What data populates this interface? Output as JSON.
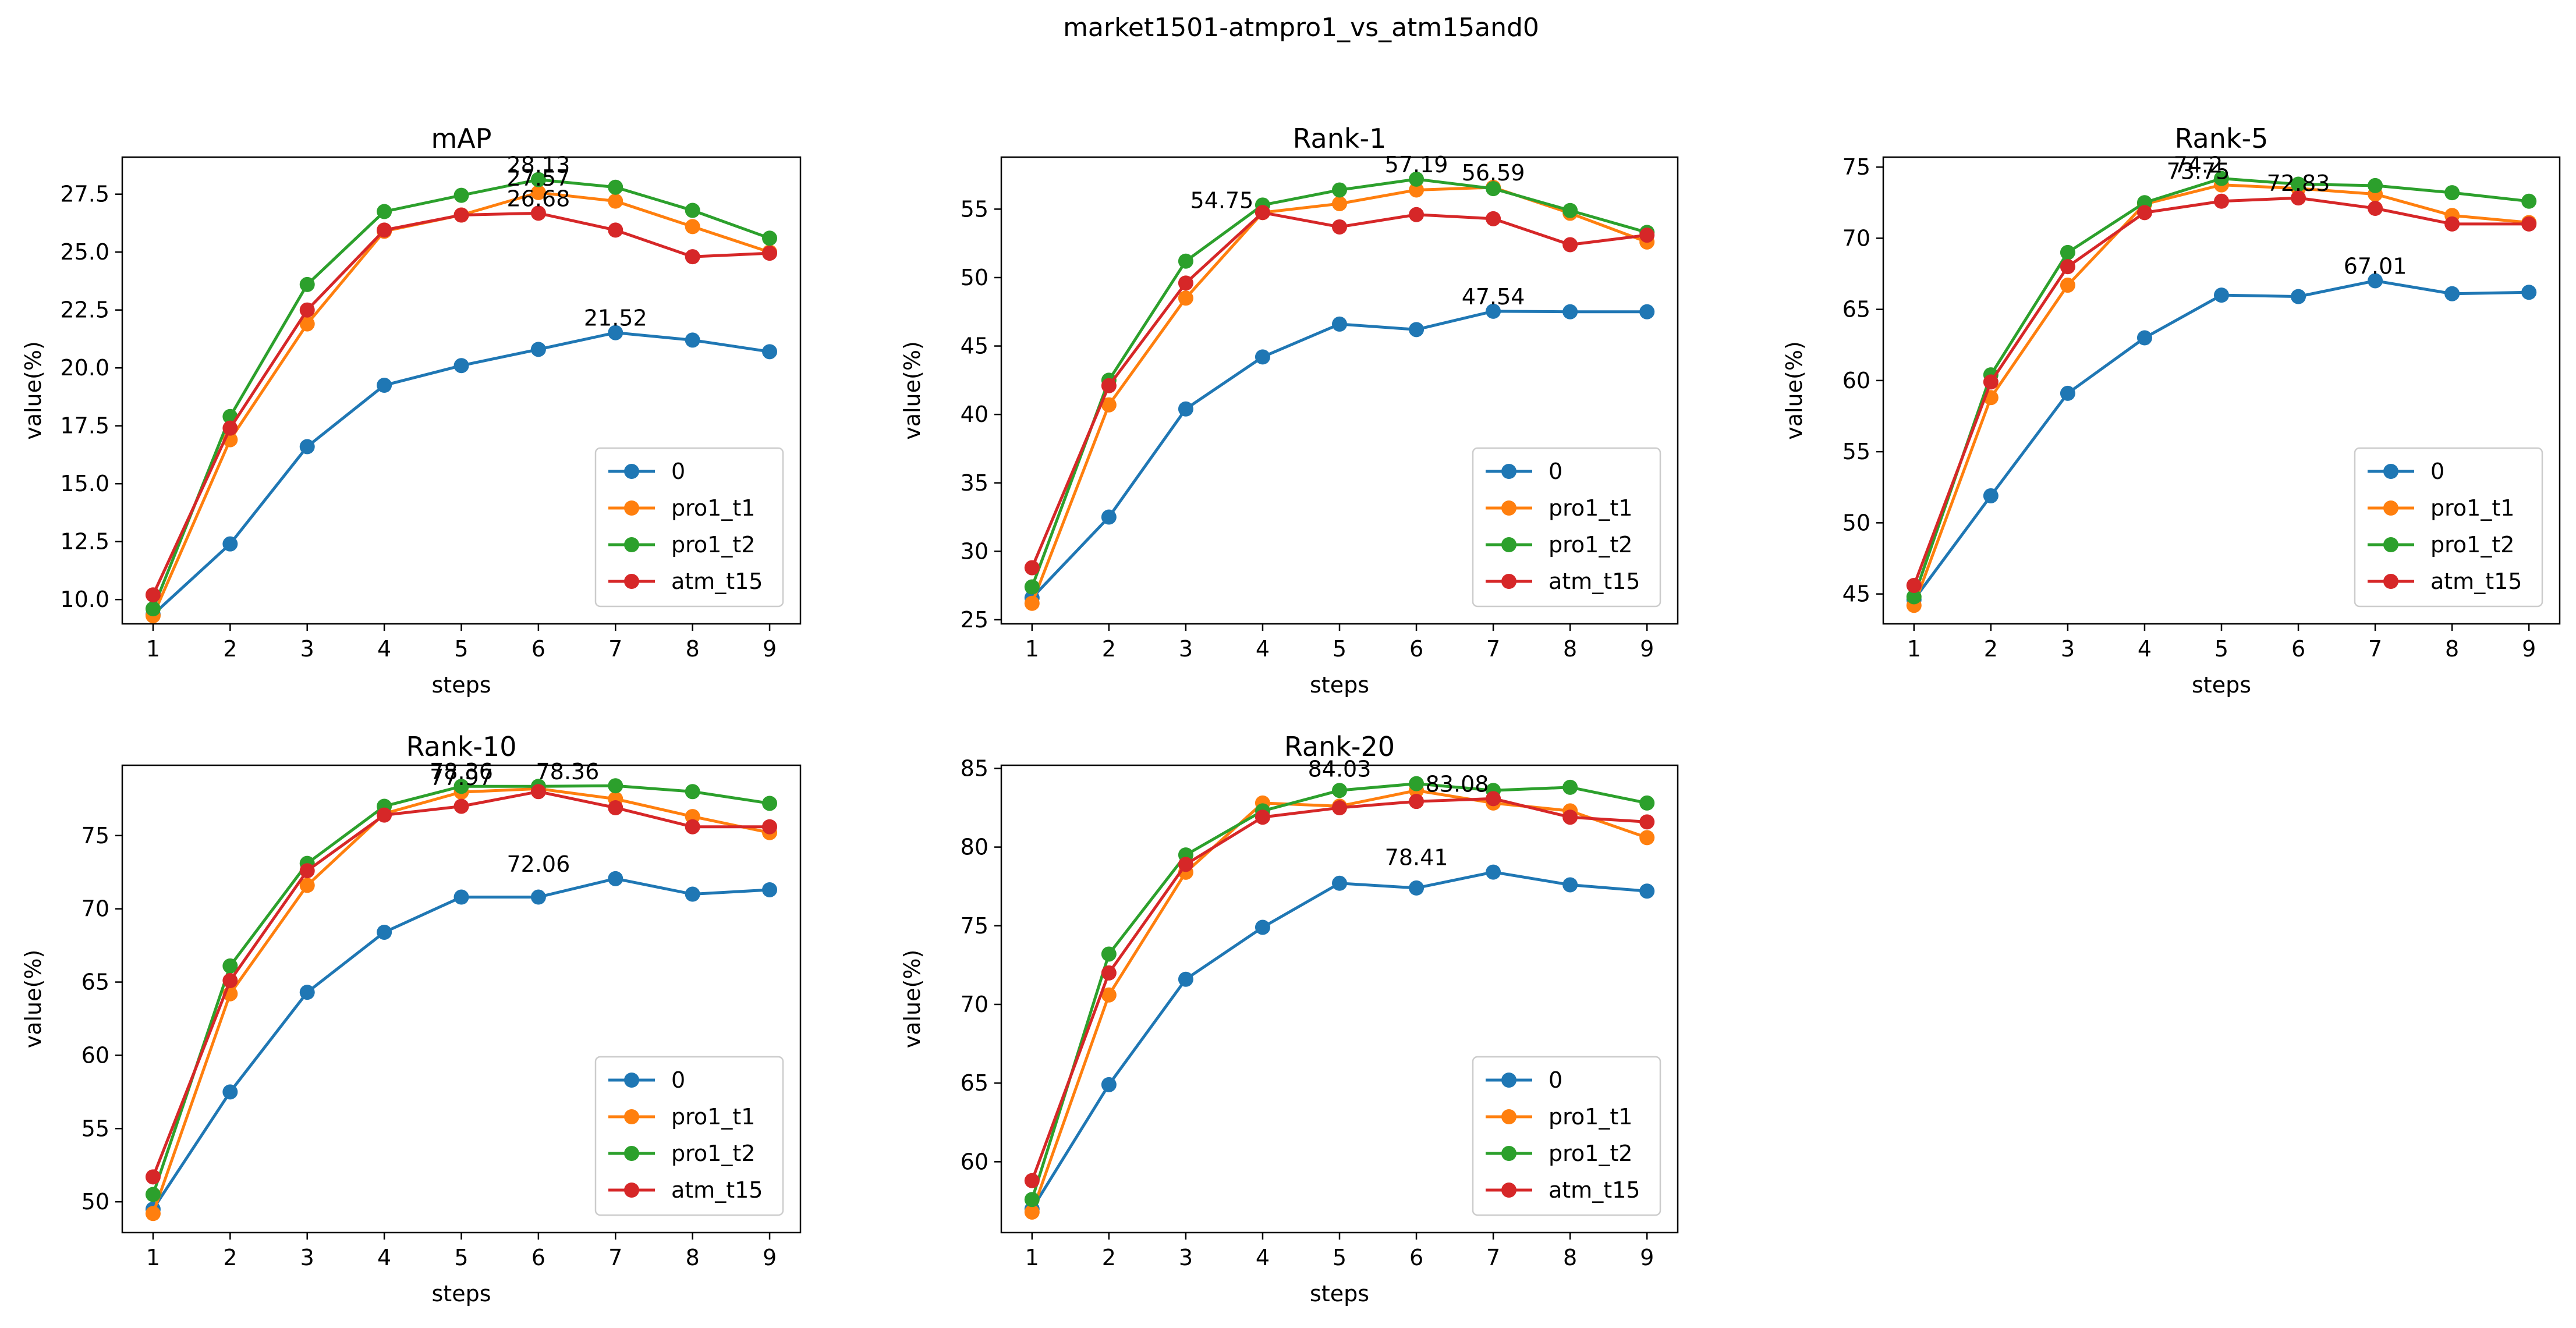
{
  "figure": {
    "title": "market1501-atmpro1_vs_atm15and0"
  },
  "series_style": [
    {
      "name": "0",
      "color": "#1f77b4"
    },
    {
      "name": "pro1_t1",
      "color": "#ff7f0e"
    },
    {
      "name": "pro1_t2",
      "color": "#2ca02c"
    },
    {
      "name": "atm_t15",
      "color": "#d62728"
    }
  ],
  "chart_data": [
    {
      "type": "line",
      "title": "mAP",
      "xlabel": "steps",
      "ylabel": "value(%)",
      "x": [
        1,
        2,
        3,
        4,
        5,
        6,
        7,
        8,
        9
      ],
      "xticks": [
        "1",
        "2",
        "3",
        "4",
        "5",
        "6",
        "7",
        "8",
        "9"
      ],
      "xlim": [
        0.6,
        9.4
      ],
      "ylim": [
        8.95,
        29.1
      ],
      "yticks": [
        10.0,
        12.5,
        15.0,
        17.5,
        20.0,
        22.5,
        25.0,
        27.5
      ],
      "yticklabels": [
        "10.0",
        "12.5",
        "15.0",
        "17.5",
        "20.0",
        "22.5",
        "25.0",
        "27.5"
      ],
      "grid": false,
      "legend": "lower-right",
      "series": [
        {
          "name": "0",
          "values": [
            9.35,
            12.4,
            16.6,
            19.25,
            20.1,
            20.8,
            21.52,
            21.2,
            20.7
          ]
        },
        {
          "name": "pro1_t1",
          "values": [
            9.3,
            16.9,
            21.9,
            25.9,
            26.6,
            27.57,
            27.2,
            26.1,
            25.0
          ]
        },
        {
          "name": "pro1_t2",
          "values": [
            9.6,
            17.9,
            23.6,
            26.75,
            27.45,
            28.13,
            27.8,
            26.8,
            25.6
          ]
        },
        {
          "name": "atm_t15",
          "values": [
            10.2,
            17.4,
            22.5,
            25.95,
            26.6,
            26.68,
            25.95,
            24.8,
            24.95
          ]
        }
      ],
      "annotations": [
        {
          "text": "28.13",
          "x": 6,
          "y": 28.13
        },
        {
          "text": "27.57",
          "x": 6,
          "y": 27.57
        },
        {
          "text": "26.68",
          "x": 6,
          "y": 26.68
        },
        {
          "text": "21.52",
          "x": 7,
          "y": 21.52
        }
      ]
    },
    {
      "type": "line",
      "title": "Rank-1",
      "xlabel": "steps",
      "ylabel": "value(%)",
      "x": [
        1,
        2,
        3,
        4,
        5,
        6,
        7,
        8,
        9
      ],
      "xticks": [
        "1",
        "2",
        "3",
        "4",
        "5",
        "6",
        "7",
        "8",
        "9"
      ],
      "xlim": [
        0.6,
        9.4
      ],
      "ylim": [
        24.7,
        58.8
      ],
      "yticks": [
        25,
        30,
        35,
        40,
        45,
        50,
        55
      ],
      "yticklabels": [
        "25",
        "30",
        "35",
        "40",
        "45",
        "50",
        "55"
      ],
      "grid": false,
      "legend": "lower-right",
      "series": [
        {
          "name": "0",
          "values": [
            26.6,
            32.5,
            40.4,
            44.2,
            46.6,
            46.2,
            47.54,
            47.5,
            47.5
          ]
        },
        {
          "name": "pro1_t1",
          "values": [
            26.2,
            40.7,
            48.5,
            54.75,
            55.4,
            56.4,
            56.59,
            54.7,
            52.6
          ]
        },
        {
          "name": "pro1_t2",
          "values": [
            27.4,
            42.5,
            51.2,
            55.3,
            56.4,
            57.19,
            56.5,
            54.9,
            53.3
          ]
        },
        {
          "name": "atm_t15",
          "values": [
            28.8,
            42.1,
            49.6,
            54.75,
            53.7,
            54.6,
            54.3,
            52.4,
            53.1
          ]
        }
      ],
      "annotations": [
        {
          "text": "57.19",
          "x": 6,
          "y": 57.19
        },
        {
          "text": "56.59",
          "x": 7,
          "y": 56.59
        },
        {
          "text": "54.75",
          "x": 4,
          "y": 54.75
        },
        {
          "text": "47.54",
          "x": 7,
          "y": 47.54
        }
      ]
    },
    {
      "type": "line",
      "title": "Rank-5",
      "xlabel": "steps",
      "ylabel": "value(%)",
      "x": [
        1,
        2,
        3,
        4,
        5,
        6,
        7,
        8,
        9
      ],
      "xticks": [
        "1",
        "2",
        "3",
        "4",
        "5",
        "6",
        "7",
        "8",
        "9"
      ],
      "xlim": [
        0.6,
        9.4
      ],
      "ylim": [
        42.9,
        75.7
      ],
      "yticks": [
        45,
        50,
        55,
        60,
        65,
        70,
        75
      ],
      "yticklabels": [
        "45",
        "50",
        "55",
        "60",
        "65",
        "70",
        "75"
      ],
      "grid": false,
      "legend": "lower-right",
      "series": [
        {
          "name": "0",
          "values": [
            44.6,
            51.9,
            59.1,
            63.0,
            66.0,
            65.9,
            67.01,
            66.1,
            66.2
          ]
        },
        {
          "name": "pro1_t1",
          "values": [
            44.2,
            58.8,
            66.7,
            72.4,
            73.75,
            73.5,
            73.1,
            71.6,
            71.1
          ]
        },
        {
          "name": "pro1_t2",
          "values": [
            44.8,
            60.4,
            69.0,
            72.5,
            74.2,
            73.8,
            73.7,
            73.2,
            72.6
          ]
        },
        {
          "name": "atm_t15",
          "values": [
            45.6,
            59.9,
            68.0,
            71.8,
            72.6,
            72.83,
            72.1,
            71.0,
            71.0
          ]
        }
      ],
      "annotations": [
        {
          "text": "74.2",
          "x": 5,
          "y": 74.2
        },
        {
          "text": "73.75",
          "x": 5,
          "y": 73.75
        },
        {
          "text": "72.83",
          "x": 6,
          "y": 72.83
        },
        {
          "text": "67.01",
          "x": 7,
          "y": 67.01
        }
      ]
    },
    {
      "type": "line",
      "title": "Rank-10",
      "xlabel": "steps",
      "ylabel": "value(%)",
      "x": [
        1,
        2,
        3,
        4,
        5,
        6,
        7,
        8,
        9
      ],
      "xticks": [
        "1",
        "2",
        "3",
        "4",
        "5",
        "6",
        "7",
        "8",
        "9"
      ],
      "xlim": [
        0.6,
        9.4
      ],
      "ylim": [
        47.9,
        79.8
      ],
      "yticks": [
        50,
        55,
        60,
        65,
        70,
        75
      ],
      "yticklabels": [
        "50",
        "55",
        "60",
        "65",
        "70",
        "75"
      ],
      "grid": false,
      "legend": "lower-right",
      "series": [
        {
          "name": "0",
          "values": [
            49.5,
            57.5,
            64.3,
            68.4,
            70.8,
            70.8,
            72.06,
            71.0,
            71.3
          ]
        },
        {
          "name": "pro1_t1",
          "values": [
            49.2,
            64.2,
            71.6,
            76.5,
            77.97,
            78.2,
            77.5,
            76.3,
            75.2
          ]
        },
        {
          "name": "pro1_t2",
          "values": [
            50.5,
            66.1,
            73.1,
            77.0,
            78.36,
            78.36,
            78.4,
            78.0,
            77.2
          ]
        },
        {
          "name": "atm_t15",
          "values": [
            51.7,
            65.1,
            72.6,
            76.4,
            77.0,
            78.0,
            76.9,
            75.6,
            75.6
          ]
        }
      ],
      "annotations": [
        {
          "text": "78.36",
          "x": 5,
          "y": 78.36
        },
        {
          "text": "77.97",
          "x": 5,
          "y": 77.97
        },
        {
          "text": "78.36",
          "x": 6,
          "y": 78.36
        },
        {
          "text": "72.06",
          "x": 6,
          "y": 72.06
        }
      ]
    },
    {
      "type": "line",
      "title": "Rank-20",
      "xlabel": "steps",
      "ylabel": "value(%)",
      "x": [
        1,
        2,
        3,
        4,
        5,
        6,
        7,
        8,
        9
      ],
      "xticks": [
        "1",
        "2",
        "3",
        "4",
        "5",
        "6",
        "7",
        "8",
        "9"
      ],
      "xlim": [
        0.6,
        9.4
      ],
      "ylim": [
        55.5,
        85.2
      ],
      "yticks": [
        60,
        65,
        70,
        75,
        80,
        85
      ],
      "yticklabels": [
        "60",
        "65",
        "70",
        "75",
        "80",
        "85"
      ],
      "grid": false,
      "legend": "lower-right",
      "series": [
        {
          "name": "0",
          "values": [
            57.0,
            64.9,
            71.6,
            74.9,
            77.7,
            77.4,
            78.41,
            77.6,
            77.2
          ]
        },
        {
          "name": "pro1_t1",
          "values": [
            56.8,
            70.6,
            78.4,
            82.8,
            82.6,
            83.6,
            82.8,
            82.3,
            80.6
          ]
        },
        {
          "name": "pro1_t2",
          "values": [
            57.6,
            73.2,
            79.5,
            82.3,
            83.6,
            84.03,
            83.6,
            83.8,
            82.8
          ]
        },
        {
          "name": "atm_t15",
          "values": [
            58.8,
            72.0,
            78.9,
            81.9,
            82.5,
            82.9,
            83.08,
            81.9,
            81.6
          ]
        }
      ],
      "annotations": [
        {
          "text": "84.03",
          "x": 5,
          "y": 84.03
        },
        {
          "text": "83.08",
          "x": 6,
          "y": 83.08
        },
        {
          "text": "78.41",
          "x": 6,
          "y": 78.41
        }
      ]
    }
  ]
}
